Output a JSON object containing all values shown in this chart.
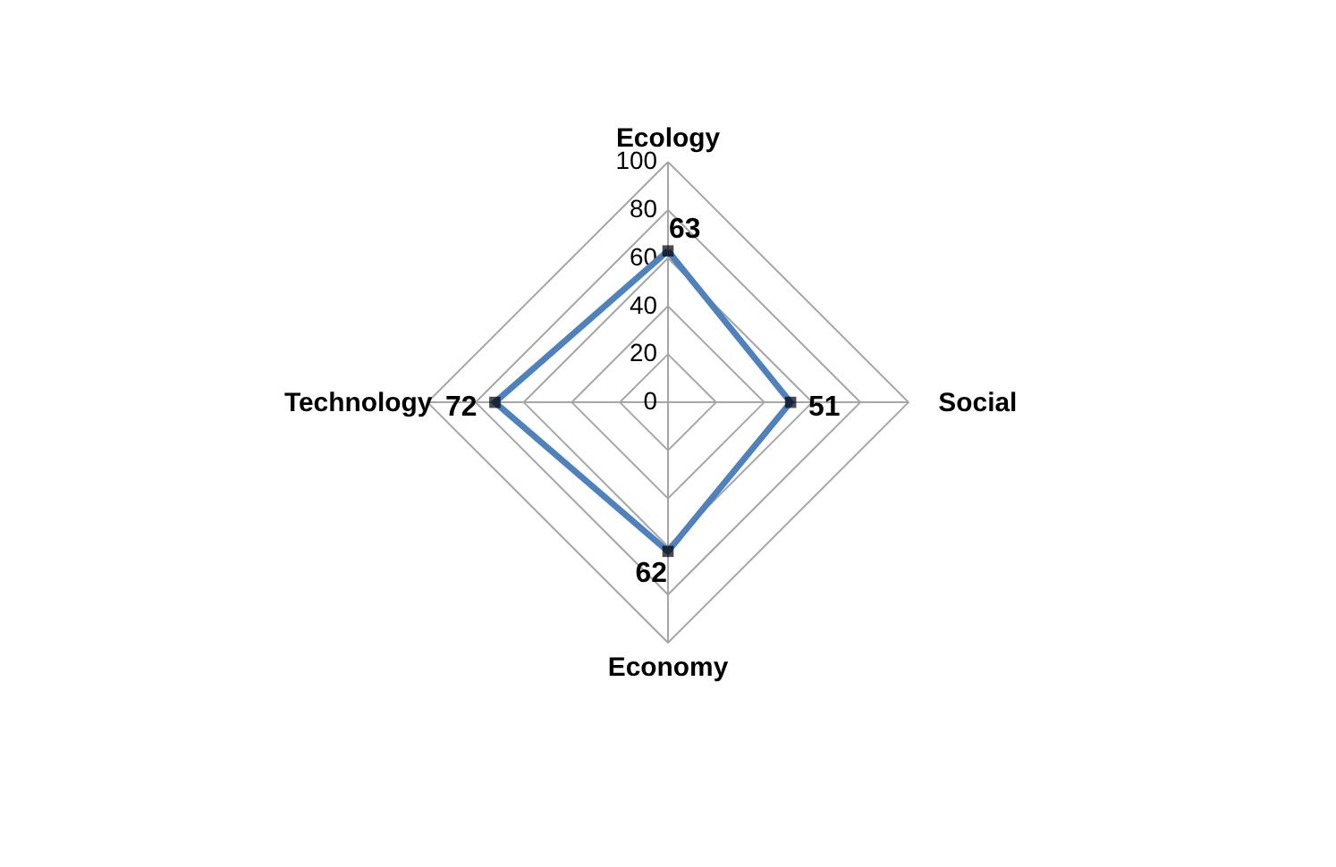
{
  "chart_data": {
    "type": "radar",
    "categories": [
      "Ecology",
      "Social",
      "Economy",
      "Technology"
    ],
    "series": [
      {
        "color": "#4f81bd",
        "values": [
          63,
          51,
          62,
          72
        ]
      }
    ],
    "ylim": [
      0,
      100
    ],
    "yticks": [
      0,
      20,
      40,
      60,
      80,
      100
    ],
    "grid": true,
    "data_labels": true,
    "marker": "square"
  }
}
